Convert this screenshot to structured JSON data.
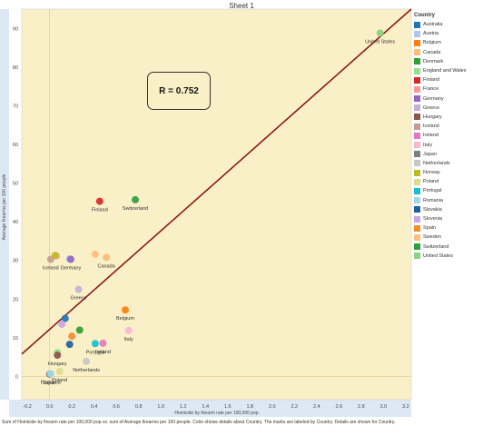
{
  "sheet_title": "Sheet 1",
  "legend_title": "Country",
  "caption": "Sum of Homicide by firearm rate per 100,000 pop vs. sum of Average firearms per 100 people.  Color shows details about Country.  The marks are labeled by Country.  Details are shown for Country.",
  "annotation": "R = 0.752",
  "chart_data": {
    "type": "scatter",
    "xlabel": "Homicide by firearm rate per 100,000 pop",
    "ylabel": "Average firearms per 100 people",
    "xlim": [
      -0.25,
      3.25
    ],
    "ylim": [
      -6,
      95
    ],
    "xticks": [
      "-0.2",
      "0.0",
      "0.2",
      "0.4",
      "0.6",
      "0.8",
      "1.0",
      "1.2",
      "1.4",
      "1.6",
      "1.8",
      "2.0",
      "2.2",
      "2.4",
      "2.6",
      "2.8",
      "3.0",
      "3.2"
    ],
    "yticks": [
      "0",
      "10",
      "20",
      "30",
      "40",
      "50",
      "60",
      "70",
      "80",
      "90"
    ],
    "grid": false,
    "legend_position": "right",
    "trend_line": [
      [
        -0.25,
        5.8
      ],
      [
        3.25,
        95
      ]
    ],
    "points": [
      {
        "country": "Australia",
        "x": 0.14,
        "y": 15.0,
        "color": "#1f77b4",
        "label": ""
      },
      {
        "country": "Austria",
        "x": 0.18,
        "y": 30.4,
        "color": "#aec7e8",
        "label": ""
      },
      {
        "country": "Belgium",
        "x": 0.68,
        "y": 17.2,
        "color": "#ff7f0e",
        "label": "Belgium"
      },
      {
        "country": "Canada",
        "x": 0.51,
        "y": 30.8,
        "color": "#ffbb78",
        "label": "Canada"
      },
      {
        "country": "Denmark",
        "x": 0.27,
        "y": 12.0,
        "color": "#2ca02c",
        "label": ""
      },
      {
        "country": "England and Wales",
        "x": 0.07,
        "y": 6.2,
        "color": "#98df8a",
        "label": ""
      },
      {
        "country": "Finland",
        "x": 0.45,
        "y": 45.3,
        "color": "#d62728",
        "label": "Finland"
      },
      {
        "country": "France",
        "x": 0.06,
        "y": 31.2,
        "color": "#ff9896",
        "label": ""
      },
      {
        "country": "Germany",
        "x": 0.19,
        "y": 30.3,
        "color": "#9467bd",
        "label": "Germany"
      },
      {
        "country": "Greece",
        "x": 0.26,
        "y": 22.5,
        "color": "#c5b0d5",
        "label": "Greece"
      },
      {
        "country": "Hungary",
        "x": 0.07,
        "y": 5.5,
        "color": "#8c564b",
        "label": "Hungary"
      },
      {
        "country": "Iceland",
        "x": 0.01,
        "y": 30.3,
        "color": "#c49c94",
        "label": "Iceland"
      },
      {
        "country": "Ireland",
        "x": 0.48,
        "y": 8.6,
        "color": "#e377c2",
        "label": "Ireland"
      },
      {
        "country": "Italy",
        "x": 0.71,
        "y": 11.9,
        "color": "#f7b6d2",
        "label": "Italy"
      },
      {
        "country": "Japan",
        "x": 0.0,
        "y": 0.6,
        "color": "#7f7f7f",
        "label": "Japan"
      },
      {
        "country": "Netherlands",
        "x": 0.33,
        "y": 3.9,
        "color": "#c7c7c7",
        "label": "Netherlands"
      },
      {
        "country": "Norway",
        "x": 0.05,
        "y": 31.3,
        "color": "#bcbd22",
        "label": ""
      },
      {
        "country": "Poland",
        "x": 0.09,
        "y": 1.3,
        "color": "#dbdb8d",
        "label": "Poland"
      },
      {
        "country": "Portugal",
        "x": 0.41,
        "y": 8.5,
        "color": "#17becf",
        "label": "Portugal"
      },
      {
        "country": "Romania",
        "x": 0.01,
        "y": 0.7,
        "color": "#9edae5",
        "label": "Romania"
      },
      {
        "country": "Slovakia",
        "x": 0.18,
        "y": 8.3,
        "color": "#1f5f9e",
        "label": ""
      },
      {
        "country": "Slovenia",
        "x": 0.11,
        "y": 13.5,
        "color": "#c9a7e6",
        "label": ""
      },
      {
        "country": "Spain",
        "x": 0.2,
        "y": 10.4,
        "color": "#f28e2b",
        "label": ""
      },
      {
        "country": "Sweden",
        "x": 0.41,
        "y": 31.6,
        "color": "#ffbe7d",
        "label": ""
      },
      {
        "country": "Switzerland",
        "x": 0.77,
        "y": 45.7,
        "color": "#2e9e3f",
        "label": "Switzerland"
      },
      {
        "country": "United States",
        "x": 2.97,
        "y": 88.8,
        "color": "#8cd17d",
        "label": "United States"
      }
    ]
  }
}
